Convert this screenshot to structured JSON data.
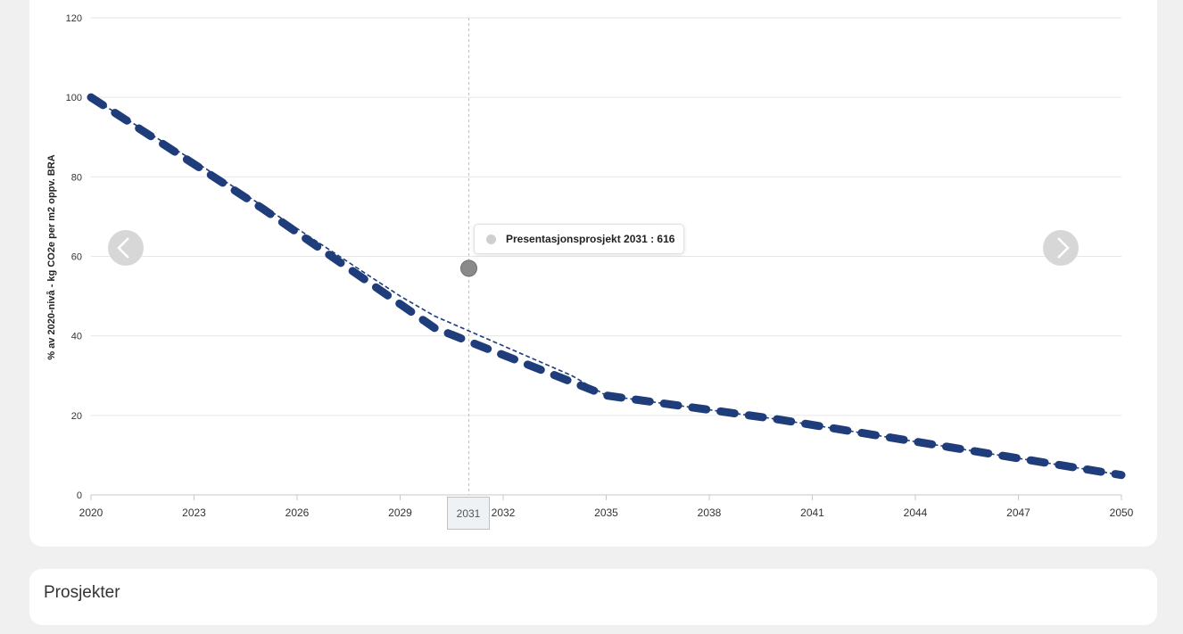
{
  "chart_data": {
    "type": "line",
    "ylabel": "% av 2020-nivå - kg CO2e per m2 oppv. BRA",
    "xlabel": "",
    "title": "",
    "xlim": [
      2020,
      2050
    ],
    "ylim": [
      0,
      120
    ],
    "x_ticks": [
      2020,
      2023,
      2026,
      2029,
      2032,
      2035,
      2038,
      2041,
      2044,
      2047,
      2050
    ],
    "y_ticks": [
      0,
      20,
      40,
      60,
      80,
      100,
      120
    ],
    "grid": true,
    "legend": "none",
    "series": [
      {
        "style": "thick-dashed",
        "color": "#1f3d7a",
        "x": [
          2020,
          2025,
          2030,
          2035,
          2040,
          2045,
          2050
        ],
        "y": [
          100,
          72,
          42,
          25,
          19,
          12,
          5
        ]
      },
      {
        "style": "thin-dashed",
        "color": "#1f3d7a",
        "x": [
          2020,
          2023,
          2026,
          2029,
          2030,
          2034,
          2035,
          2040,
          2045,
          2050
        ],
        "y": [
          100,
          84,
          67,
          50,
          45,
          30,
          25,
          19,
          12,
          5
        ]
      }
    ],
    "highlight_point": {
      "x": 2031,
      "y": 57,
      "color": "#8a8a8a"
    },
    "crosshair_x": 2031
  },
  "tooltip": {
    "text": "Presentasjonsprosjekt 2031 : 616"
  },
  "crosshair_label": "2031",
  "projects": {
    "title": "Prosjekter"
  },
  "nav": {
    "prev_icon": "chevron-left-icon",
    "next_icon": "chevron-right-icon"
  }
}
